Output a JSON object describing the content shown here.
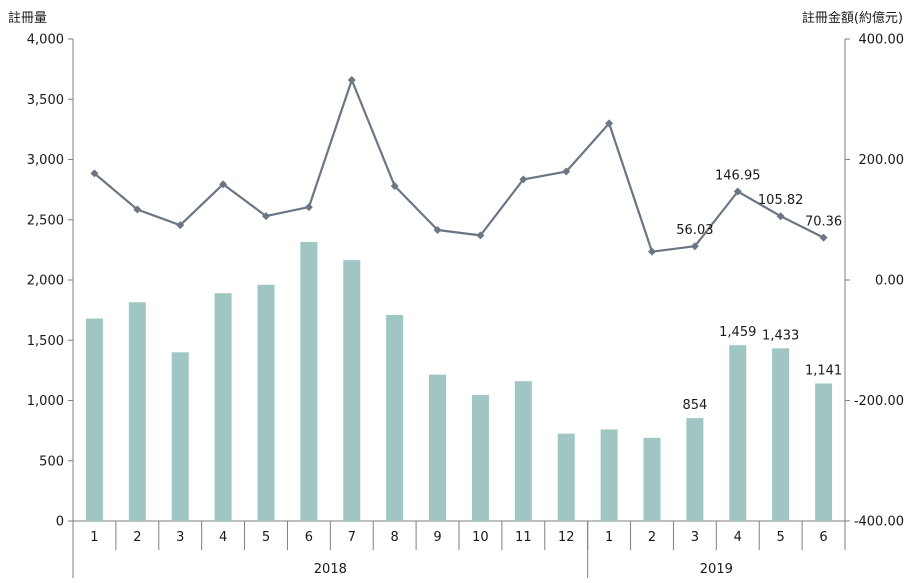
{
  "chart_data": {
    "type": "bar+line",
    "x_months": [
      "1",
      "2",
      "3",
      "4",
      "5",
      "6",
      "7",
      "8",
      "9",
      "10",
      "11",
      "12",
      "1",
      "2",
      "3",
      "4",
      "5",
      "6"
    ],
    "year_groups": [
      {
        "label": "2018",
        "start": 0,
        "end": 11
      },
      {
        "label": "2019",
        "start": 12,
        "end": 17
      }
    ],
    "y_left": {
      "label": "註冊量",
      "range": [
        0,
        4000
      ],
      "ticks": [
        "0",
        "500",
        "1,000",
        "1,500",
        "2,000",
        "2,500",
        "3,000",
        "3,500",
        "4,000"
      ]
    },
    "y_right": {
      "label": "註冊金額(約億元)",
      "range": [
        -400,
        400
      ],
      "ticks": [
        "-400.00",
        "-200.00",
        "0.00",
        "200.00",
        "400.00"
      ]
    },
    "series": [
      {
        "kind": "bar",
        "axis": "left",
        "color": "#9fc6c3",
        "values": [
          1680,
          1815,
          1400,
          1890,
          1960,
          2315,
          2165,
          1710,
          1215,
          1045,
          1160,
          725,
          760,
          690,
          854,
          1459,
          1433,
          1141
        ],
        "data_labels": {
          "14": "854",
          "15": "1,459",
          "16": "1,433",
          "17": "1,141"
        }
      },
      {
        "kind": "line",
        "axis": "right",
        "color": "#6b7685",
        "values": [
          177,
          117,
          91,
          159,
          106,
          121,
          332,
          156,
          83,
          74,
          167,
          180,
          260,
          47,
          56.03,
          146.95,
          105.82,
          70.36
        ],
        "data_labels": {
          "14": "56.03",
          "15": "146.95",
          "16": "105.82",
          "17": "70.36"
        }
      }
    ]
  }
}
